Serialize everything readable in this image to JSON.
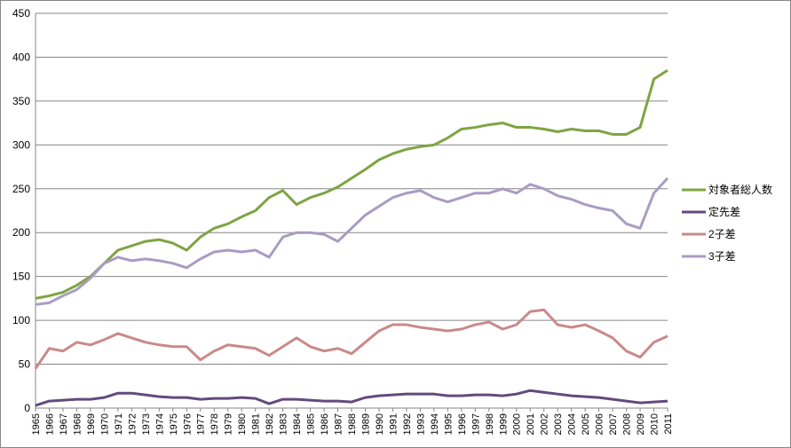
{
  "chart_data": {
    "type": "line",
    "categories": [
      "1965",
      "1966",
      "1967",
      "1968",
      "1969",
      "1970",
      "1971",
      "1972",
      "1973",
      "1974",
      "1975",
      "1976",
      "1977",
      "1978",
      "1979",
      "1980",
      "1981",
      "1982",
      "1983",
      "1984",
      "1985",
      "1986",
      "1987",
      "1988",
      "1989",
      "1990",
      "1991",
      "1992",
      "1993",
      "1994",
      "1995",
      "1996",
      "1997",
      "1998",
      "1999",
      "2000",
      "2001",
      "2002",
      "2003",
      "2004",
      "2005",
      "2006",
      "2007",
      "2008",
      "2009",
      "2010",
      "2011"
    ],
    "series": [
      {
        "name": "対象者総人数",
        "color": "#7fa443",
        "values": [
          125,
          128,
          132,
          140,
          150,
          165,
          180,
          185,
          190,
          192,
          188,
          180,
          195,
          205,
          210,
          218,
          225,
          240,
          248,
          232,
          240,
          245,
          252,
          262,
          272,
          283,
          290,
          295,
          298,
          300,
          308,
          318,
          320,
          323,
          325,
          320,
          320,
          318,
          315,
          318,
          316,
          316,
          312,
          312,
          320,
          375,
          385
        ]
      },
      {
        "name": "定先差",
        "color": "#634a7e",
        "values": [
          3,
          8,
          9,
          10,
          10,
          12,
          17,
          17,
          15,
          13,
          12,
          12,
          10,
          11,
          11,
          12,
          11,
          5,
          10,
          10,
          9,
          8,
          8,
          7,
          12,
          14,
          15,
          16,
          16,
          16,
          14,
          14,
          15,
          15,
          14,
          16,
          20,
          18,
          16,
          14,
          13,
          12,
          10,
          8,
          6,
          7,
          8
        ]
      },
      {
        "name": "2子差",
        "color": "#c98a89",
        "values": [
          45,
          68,
          65,
          75,
          72,
          78,
          85,
          80,
          75,
          72,
          70,
          70,
          55,
          65,
          72,
          70,
          68,
          60,
          70,
          80,
          70,
          65,
          68,
          62,
          75,
          88,
          95,
          95,
          92,
          90,
          88,
          90,
          95,
          98,
          90,
          95,
          110,
          112,
          95,
          92,
          95,
          88,
          80,
          65,
          58,
          75,
          82
        ]
      },
      {
        "name": "3子差",
        "color": "#a99cc3",
        "values": [
          118,
          120,
          128,
          135,
          148,
          165,
          172,
          168,
          170,
          168,
          165,
          160,
          170,
          178,
          180,
          178,
          180,
          172,
          195,
          200,
          200,
          198,
          190,
          205,
          220,
          230,
          240,
          245,
          248,
          240,
          235,
          240,
          245,
          245,
          250,
          245,
          255,
          250,
          242,
          238,
          232,
          228,
          225,
          210,
          205,
          245,
          262
        ]
      }
    ],
    "ylim": [
      0,
      450
    ],
    "yticks": [
      0,
      50,
      100,
      150,
      200,
      250,
      300,
      350,
      400,
      450
    ],
    "grid": true,
    "legend": "right"
  }
}
